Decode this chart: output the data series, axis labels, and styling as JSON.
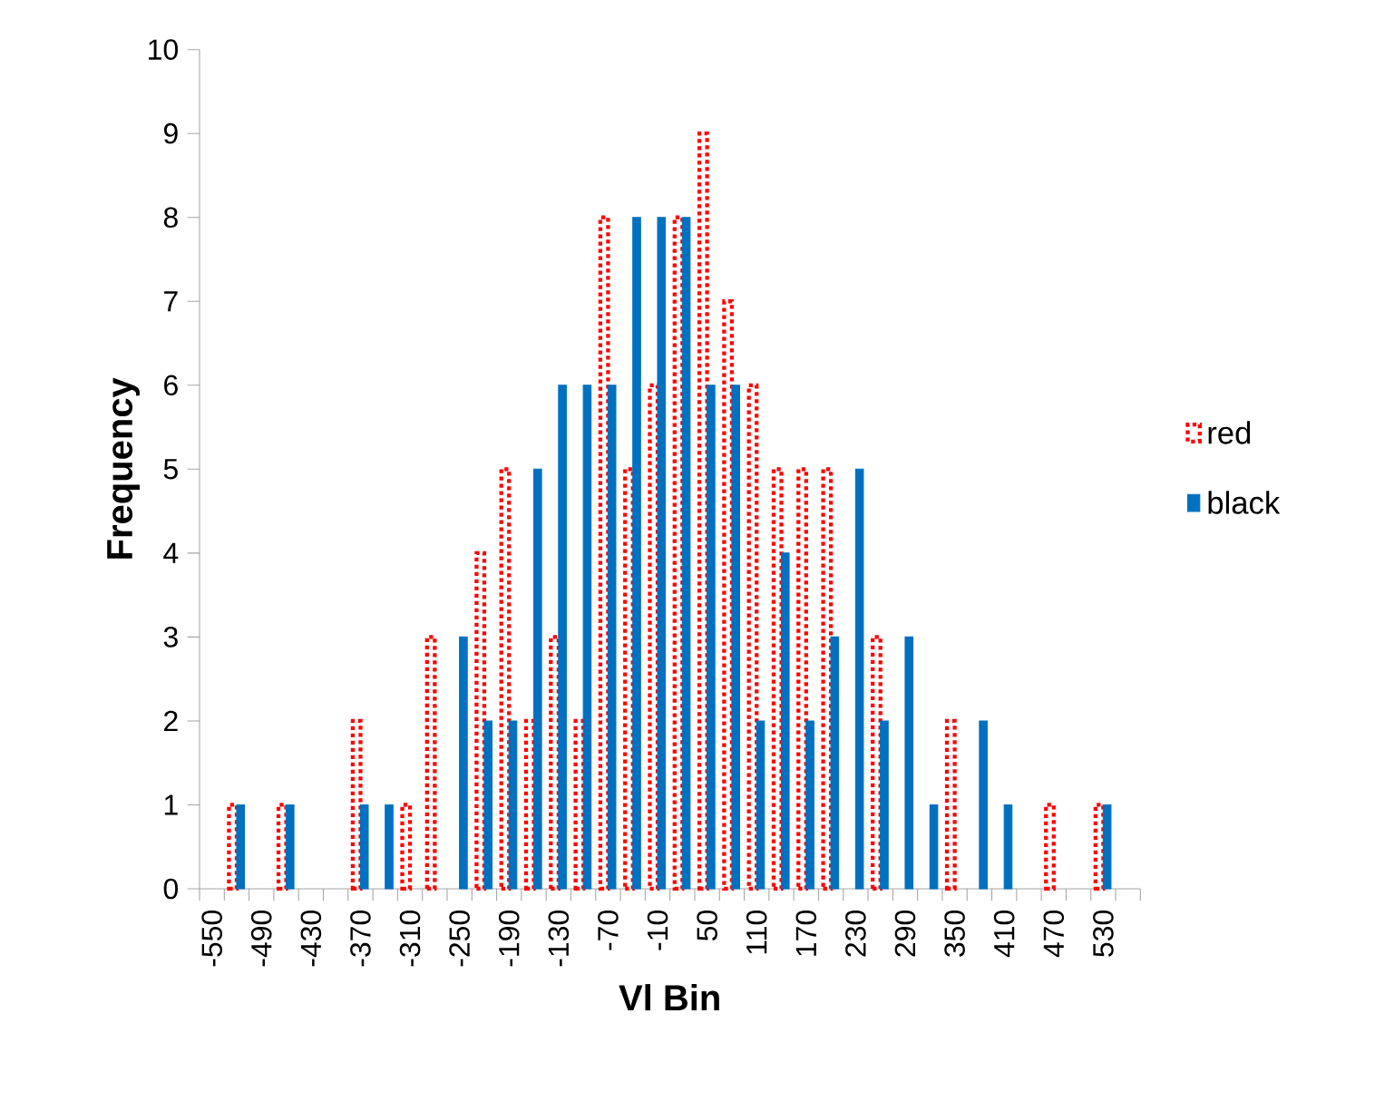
{
  "chart_data": {
    "type": "bar",
    "xlabel": "Vl Bin",
    "ylabel": "Frequency",
    "categories": [
      "-550",
      null,
      "-490",
      null,
      "-430",
      null,
      "-370",
      null,
      "-310",
      null,
      "-250",
      null,
      "-190",
      null,
      "-130",
      null,
      "-70",
      null,
      "-10",
      null,
      "50",
      null,
      "110",
      null,
      "170",
      null,
      "230",
      null,
      "290",
      null,
      "350",
      null,
      "410",
      null,
      "470",
      null,
      "530",
      null
    ],
    "series": [
      {
        "name": "red",
        "color": "#ff0000",
        "line_style": "dotted",
        "values": [
          0,
          1,
          0,
          1,
          0,
          0,
          2,
          0,
          1,
          3,
          0,
          4,
          5,
          2,
          3,
          2,
          8,
          5,
          6,
          8,
          9,
          7,
          6,
          5,
          5,
          5,
          0,
          3,
          0,
          0,
          2,
          0,
          0,
          0,
          1,
          0,
          1,
          0
        ]
      },
      {
        "name": "black",
        "color": "#0070c0",
        "values": [
          0,
          1,
          0,
          1,
          0,
          0,
          1,
          1,
          0,
          0,
          3,
          2,
          2,
          5,
          6,
          6,
          6,
          8,
          8,
          8,
          6,
          6,
          2,
          4,
          2,
          3,
          5,
          2,
          3,
          1,
          0,
          2,
          1,
          0,
          0,
          0,
          1,
          0
        ]
      }
    ],
    "ylim": [
      0,
      10
    ],
    "yticks": [
      0,
      1,
      2,
      3,
      4,
      5,
      6,
      7,
      8,
      9,
      10
    ],
    "legend": "right"
  }
}
